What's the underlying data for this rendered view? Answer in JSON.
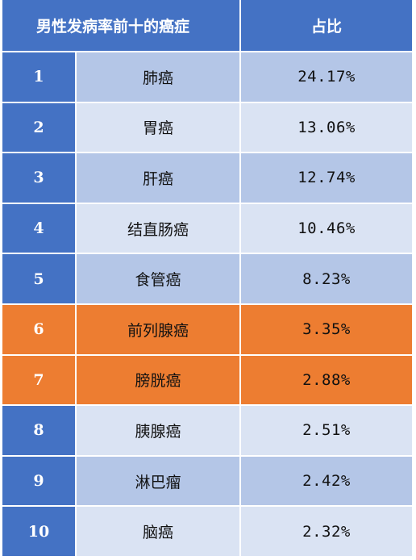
{
  "header": {
    "name_col": "男性发病率前十的癌症",
    "pct_col": "占比"
  },
  "rows": [
    {
      "rank": "1",
      "name": "肺癌",
      "pct": "24.17%"
    },
    {
      "rank": "2",
      "name": "胃癌",
      "pct": "13.06%"
    },
    {
      "rank": "3",
      "name": "肝癌",
      "pct": "12.74%"
    },
    {
      "rank": "4",
      "name": "结直肠癌",
      "pct": "10.46%"
    },
    {
      "rank": "5",
      "name": "食管癌",
      "pct": "8.23%"
    },
    {
      "rank": "6",
      "name": "前列腺癌",
      "pct": "3.35%"
    },
    {
      "rank": "7",
      "name": "膀胱癌",
      "pct": "2.88%"
    },
    {
      "rank": "8",
      "name": "胰腺癌",
      "pct": "2.51%"
    },
    {
      "rank": "9",
      "name": "淋巴瘤",
      "pct": "2.42%"
    },
    {
      "rank": "10",
      "name": "脑癌",
      "pct": "2.32%"
    }
  ],
  "colors": {
    "header_blue": "#4472c4",
    "row_light": "#dae3f3",
    "row_mid": "#b4c6e7",
    "highlight_orange": "#ed7d31"
  },
  "highlighted_ranks": [
    "6",
    "7"
  ]
}
